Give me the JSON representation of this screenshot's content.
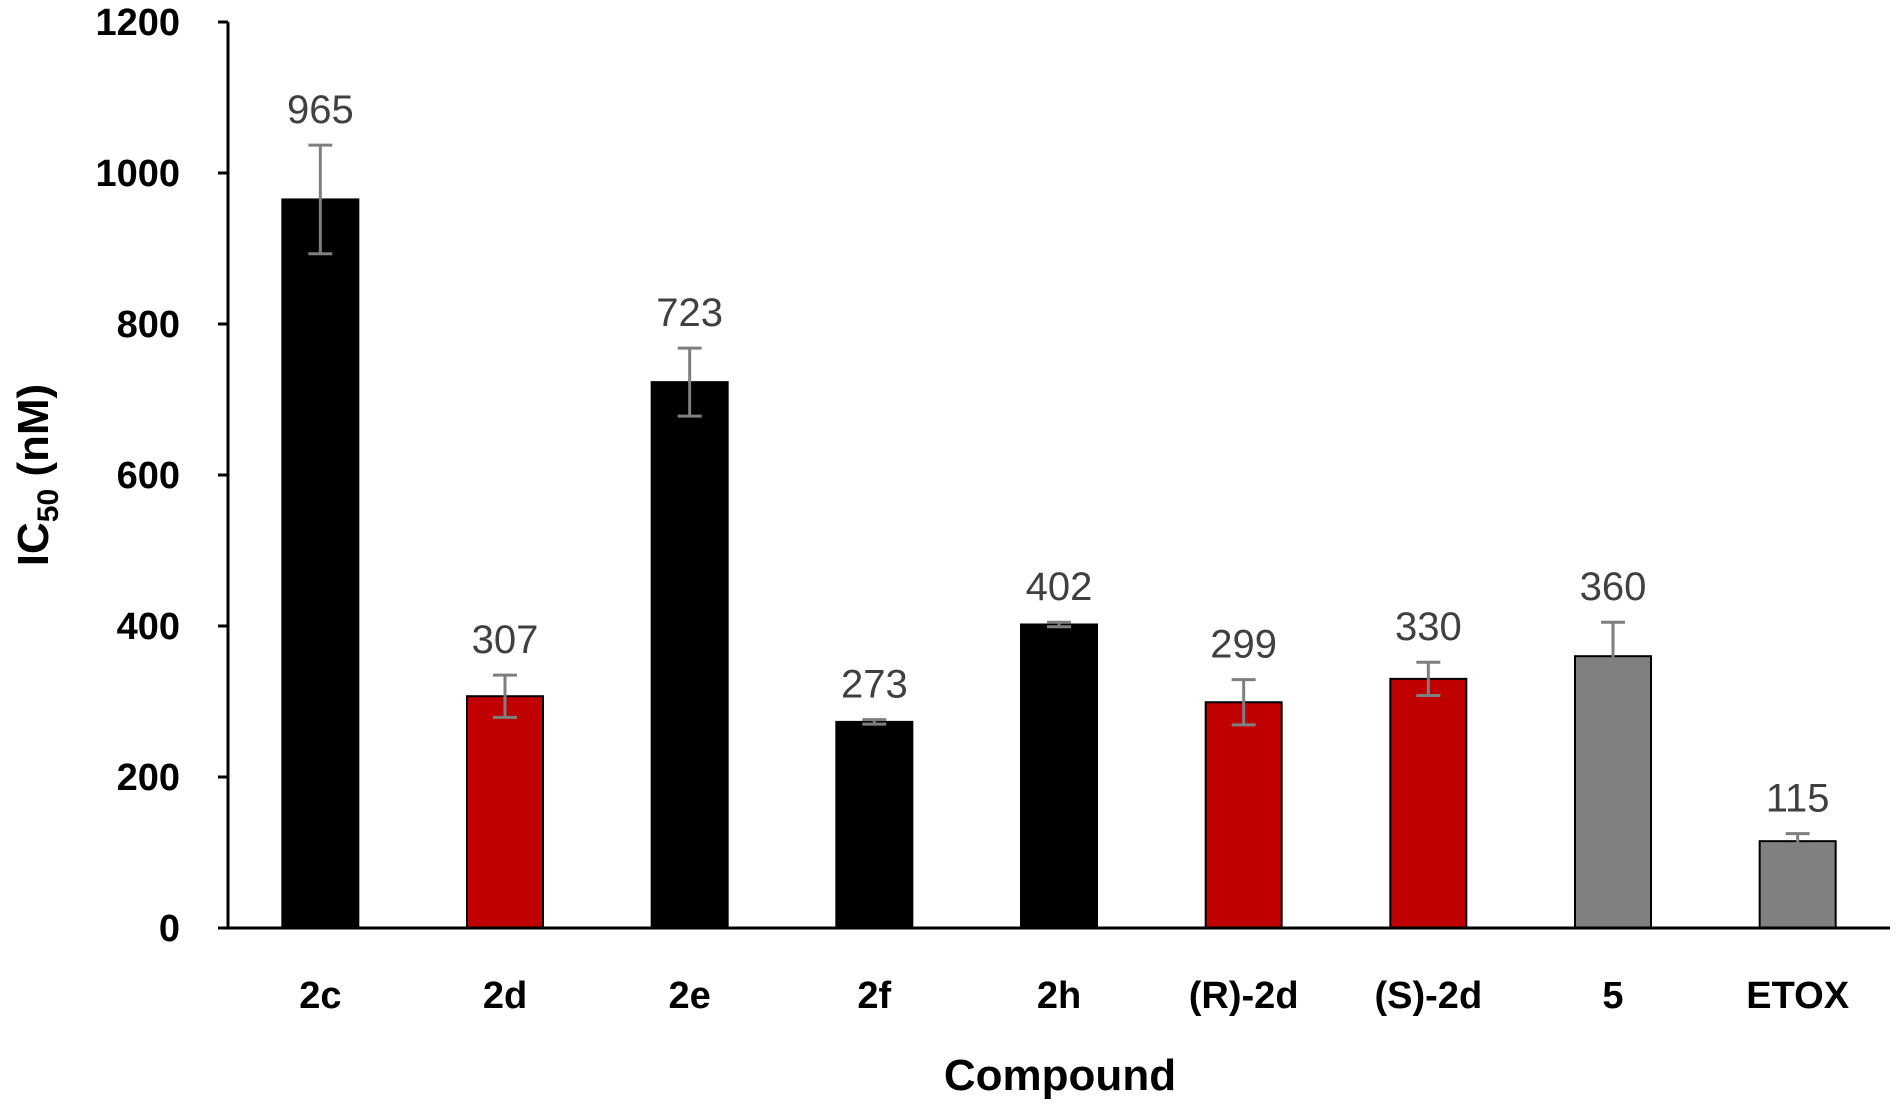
{
  "chart_data": {
    "type": "bar",
    "xlabel": "Compound",
    "ylabel_main": "IC",
    "ylabel_sub": "50",
    "ylabel_unit": " (nM)",
    "ylim": [
      0,
      1200
    ],
    "yticks": [
      0,
      200,
      400,
      600,
      800,
      1000,
      1200
    ],
    "grid": false,
    "legend": "none",
    "categories": [
      "2c",
      "2d",
      "2e",
      "2f",
      "2h",
      "(R)-2d",
      "(S)-2d",
      "5",
      "ETOX"
    ],
    "values": [
      965,
      307,
      723,
      273,
      402,
      299,
      330,
      360,
      115
    ],
    "data_labels": [
      "965",
      "307",
      "723",
      "273",
      "402",
      "299",
      "330",
      "360",
      "115"
    ],
    "error": [
      72,
      28,
      45,
      3,
      3,
      30,
      22,
      45,
      10
    ],
    "bar_colors": [
      "#000000",
      "#c00000",
      "#000000",
      "#000000",
      "#000000",
      "#c00000",
      "#c00000",
      "#808080",
      "#808080"
    ],
    "error_bar_color": "#7f7f7f"
  }
}
